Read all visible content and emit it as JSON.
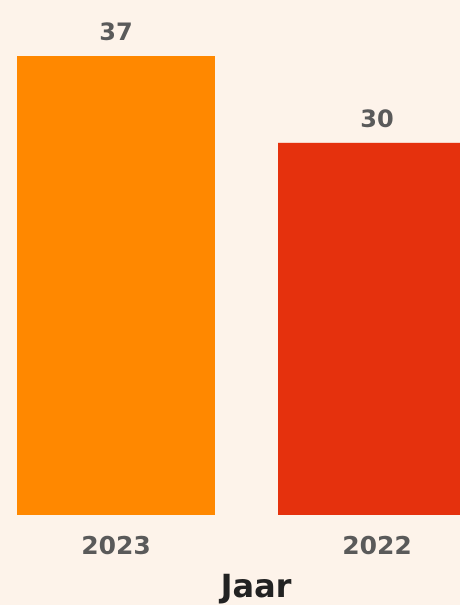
{
  "chart_data": {
    "type": "bar",
    "categories": [
      "2023",
      "2022"
    ],
    "values": [
      37,
      30
    ],
    "colors": [
      "#FF8800",
      "#E5310D"
    ],
    "data_labels": [
      "37",
      "30"
    ],
    "xlabel": "Jaar",
    "ylabel": "",
    "ylim": [
      0,
      37
    ],
    "grid": false,
    "background": "#FDF3EA"
  }
}
